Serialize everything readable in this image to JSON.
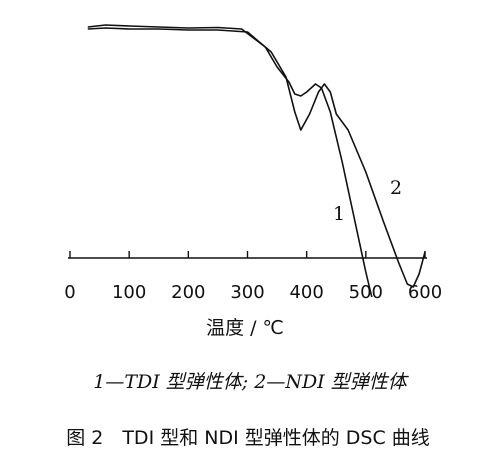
{
  "chart_data": {
    "type": "line",
    "xlabel": "温度 / ℃",
    "ylabel": "",
    "xlim": [
      0,
      600
    ],
    "x_ticks": [
      0,
      100,
      200,
      300,
      400,
      500,
      600
    ],
    "tick_labels": [
      "0",
      "100",
      "200",
      "300",
      "400",
      "500",
      "600"
    ],
    "grid": false,
    "series": [
      {
        "name": "1",
        "color": "#111111",
        "points": [
          [
            30,
            15
          ],
          [
            60,
            13
          ],
          [
            100,
            14
          ],
          [
            150,
            15
          ],
          [
            200,
            16
          ],
          [
            250,
            15.5
          ],
          [
            290,
            17
          ],
          [
            330,
            35
          ],
          [
            350,
            55
          ],
          [
            370,
            70
          ],
          [
            380,
            82
          ],
          [
            390,
            84
          ],
          [
            400,
            80
          ],
          [
            415,
            72
          ],
          [
            425,
            76
          ],
          [
            440,
            100
          ],
          [
            460,
            150
          ],
          [
            480,
            205
          ],
          [
            500,
            260
          ],
          [
            510,
            285
          ]
        ]
      },
      {
        "name": "2",
        "color": "#111111",
        "points": [
          [
            30,
            17
          ],
          [
            60,
            16
          ],
          [
            100,
            17
          ],
          [
            150,
            17
          ],
          [
            200,
            18
          ],
          [
            250,
            18
          ],
          [
            300,
            20
          ],
          [
            340,
            40
          ],
          [
            365,
            65
          ],
          [
            380,
            100
          ],
          [
            390,
            118
          ],
          [
            405,
            102
          ],
          [
            420,
            80
          ],
          [
            430,
            72
          ],
          [
            440,
            80
          ],
          [
            450,
            102
          ],
          [
            470,
            118
          ],
          [
            500,
            160
          ],
          [
            530,
            210
          ],
          [
            555,
            250
          ],
          [
            570,
            272
          ],
          [
            580,
            275
          ],
          [
            590,
            262
          ],
          [
            600,
            240
          ]
        ]
      }
    ],
    "curve_labels": [
      "1",
      "2"
    ],
    "legend": "1—TDI 型弹性体; 2—NDI 型弹性体",
    "caption": "图 2　TDI 型和 NDI 型弹性体的 DSC 曲线"
  }
}
